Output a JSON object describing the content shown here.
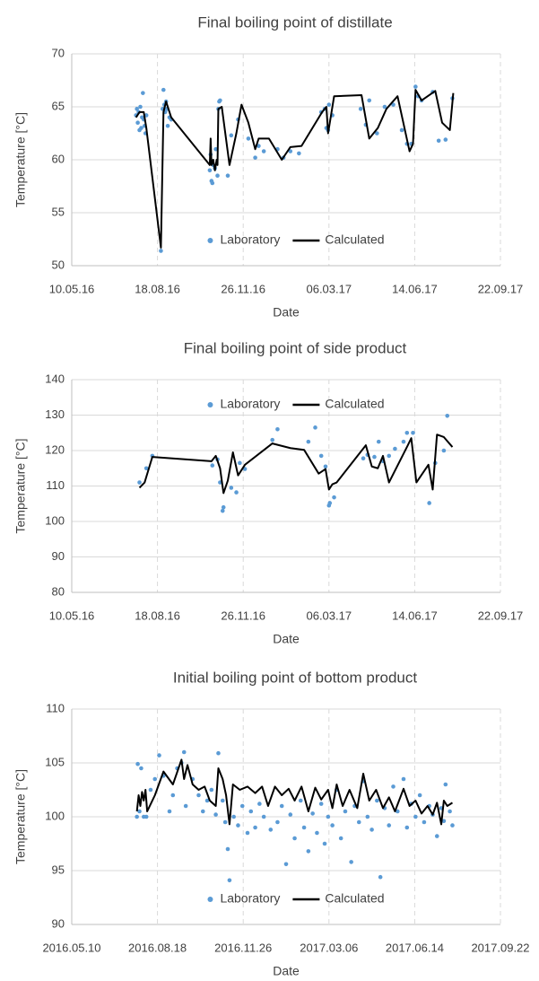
{
  "chart_data": [
    {
      "type": "combo",
      "title": "Final boiling point of distillate",
      "x_label": "Date",
      "y_label": "Temperature [°C]",
      "xlim": [
        "2016-05-10",
        "2017-09-22"
      ],
      "xticks": [
        {
          "value": "2016-05-10",
          "label": "10.05.16"
        },
        {
          "value": "2016-08-18",
          "label": "18.08.16"
        },
        {
          "value": "2016-11-26",
          "label": "26.11.16"
        },
        {
          "value": "2017-03-06",
          "label": "06.03.17"
        },
        {
          "value": "2017-06-14",
          "label": "14.06.17"
        },
        {
          "value": "2017-09-22",
          "label": "22.09.17"
        }
      ],
      "ylim": [
        50,
        70
      ],
      "yticks": [
        50,
        55,
        60,
        65,
        70
      ],
      "grid": true,
      "legend": "lower center",
      "series": [
        {
          "name": "Laboratory",
          "type": "scatter",
          "color": "#5b9bd5",
          "x": [
            "2016-07-24",
            "2016-07-25",
            "2016-07-26",
            "2016-07-27",
            "2016-07-28",
            "2016-07-29",
            "2016-07-30",
            "2016-07-31",
            "2016-08-01",
            "2016-08-02",
            "2016-08-03",
            "2016-08-04",
            "2016-08-05",
            "2016-08-22",
            "2016-08-24",
            "2016-08-25",
            "2016-08-26",
            "2016-08-27",
            "2016-08-28",
            "2016-08-29",
            "2016-08-30",
            "2016-09-01",
            "2016-09-03",
            "2016-10-18",
            "2016-10-19",
            "2016-10-20",
            "2016-10-21",
            "2016-10-22",
            "2016-10-24",
            "2016-10-25",
            "2016-10-27",
            "2016-10-28",
            "2016-10-29",
            "2016-10-30",
            "2016-11-08",
            "2016-11-12",
            "2016-11-20",
            "2016-12-02",
            "2016-12-10",
            "2016-12-14",
            "2016-12-20",
            "2017-01-05",
            "2017-01-12",
            "2017-01-20",
            "2017-01-30",
            "2017-02-25",
            "2017-03-01",
            "2017-03-03",
            "2017-03-05",
            "2017-03-06",
            "2017-03-10",
            "2017-04-12",
            "2017-04-18",
            "2017-04-22",
            "2017-05-01",
            "2017-05-10",
            "2017-05-20",
            "2017-05-30",
            "2017-06-05",
            "2017-06-10",
            "2017-06-15",
            "2017-06-18",
            "2017-06-22",
            "2017-07-05",
            "2017-07-12",
            "2017-07-20",
            "2017-07-28"
          ],
          "values": [
            64.2,
            64.8,
            63.5,
            64.5,
            62.8,
            65.0,
            63.0,
            64.0,
            66.3,
            63.8,
            63.2,
            62.5,
            64.2,
            51.4,
            64.8,
            66.6,
            65.2,
            64.5,
            65.5,
            64.8,
            63.2,
            64.0,
            63.8,
            59.0,
            60.5,
            58.0,
            57.8,
            59.5,
            59.2,
            61.0,
            58.5,
            64.8,
            65.5,
            65.6,
            58.5,
            62.3,
            63.8,
            62.0,
            60.2,
            61.3,
            60.8,
            61.0,
            60.2,
            60.8,
            60.6,
            64.5,
            64.8,
            63.0,
            62.8,
            65.2,
            64.2,
            64.8,
            63.3,
            65.6,
            62.5,
            65.0,
            65.2,
            62.8,
            61.5,
            61.5,
            66.9,
            66.0,
            65.6,
            66.4,
            61.8,
            61.9,
            65.8
          ]
        },
        {
          "name": "Calculated",
          "type": "line",
          "color": "#000000",
          "x": [
            "2016-07-24",
            "2016-07-28",
            "2016-08-02",
            "2016-08-05",
            "2016-08-22",
            "2016-08-25",
            "2016-08-28",
            "2016-09-03",
            "2016-10-18",
            "2016-10-19",
            "2016-10-20",
            "2016-10-22",
            "2016-10-24",
            "2016-10-26",
            "2016-10-27",
            "2016-10-28",
            "2016-11-01",
            "2016-11-10",
            "2016-11-18",
            "2016-11-24",
            "2016-12-02",
            "2016-12-10",
            "2016-12-14",
            "2016-12-26",
            "2017-01-10",
            "2017-01-20",
            "2017-02-02",
            "2017-02-26",
            "2017-03-03",
            "2017-03-05",
            "2017-03-12",
            "2017-04-13",
            "2017-04-22",
            "2017-05-02",
            "2017-05-12",
            "2017-05-25",
            "2017-06-08",
            "2017-06-12",
            "2017-06-15",
            "2017-06-22",
            "2017-07-08",
            "2017-07-16",
            "2017-07-25",
            "2017-07-29"
          ],
          "values": [
            64.0,
            64.5,
            64.5,
            63.0,
            51.7,
            64.5,
            65.5,
            64.0,
            59.5,
            62.0,
            59.5,
            60.0,
            59.0,
            60.0,
            59.5,
            64.8,
            65.0,
            59.5,
            62.5,
            65.2,
            63.5,
            61.0,
            62.0,
            62.0,
            60.0,
            61.2,
            61.3,
            64.5,
            65.0,
            62.5,
            66.0,
            66.1,
            62.0,
            63.0,
            64.8,
            66.0,
            60.8,
            61.5,
            66.6,
            65.6,
            66.5,
            63.5,
            62.8,
            66.3
          ]
        }
      ]
    },
    {
      "type": "combo",
      "title": "Final boiling point of side product",
      "x_label": "Date",
      "y_label": "Temperature [°C]",
      "xlim": [
        "2016-05-10",
        "2017-09-22"
      ],
      "xticks": [
        {
          "value": "2016-05-10",
          "label": "10.05.16"
        },
        {
          "value": "2016-08-18",
          "label": "18.08.16"
        },
        {
          "value": "2016-11-26",
          "label": "26.11.16"
        },
        {
          "value": "2017-03-06",
          "label": "06.03.17"
        },
        {
          "value": "2017-06-14",
          "label": "14.06.17"
        },
        {
          "value": "2017-09-22",
          "label": "22.09.17"
        }
      ],
      "ylim": [
        80,
        140
      ],
      "yticks": [
        80,
        90,
        100,
        110,
        120,
        130,
        140
      ],
      "grid": true,
      "legend": "upper center",
      "series": [
        {
          "name": "Laboratory",
          "type": "scatter",
          "color": "#5b9bd5",
          "x": [
            "2016-07-28",
            "2016-08-05",
            "2016-08-12",
            "2016-10-21",
            "2016-10-27",
            "2016-10-30",
            "2016-11-02",
            "2016-11-03",
            "2016-11-12",
            "2016-11-18",
            "2016-11-22",
            "2016-11-28",
            "2016-12-30",
            "2017-01-05",
            "2017-02-10",
            "2017-02-18",
            "2017-02-25",
            "2017-03-02",
            "2017-03-06",
            "2017-03-07",
            "2017-03-12",
            "2017-04-15",
            "2017-04-20",
            "2017-04-28",
            "2017-05-03",
            "2017-05-08",
            "2017-05-15",
            "2017-05-22",
            "2017-06-01",
            "2017-06-05",
            "2017-06-12",
            "2017-07-01",
            "2017-07-08",
            "2017-07-18",
            "2017-07-22"
          ],
          "values": [
            111,
            115,
            118.5,
            115.8,
            117.5,
            111,
            103,
            104,
            109.5,
            108.2,
            116.5,
            114.8,
            123,
            126,
            122.5,
            126.5,
            118.5,
            115.5,
            104.5,
            105.2,
            106.8,
            117.8,
            118.8,
            118.2,
            122.5,
            117,
            118.5,
            120.5,
            122.5,
            125,
            125,
            105.2,
            116.5,
            120,
            129.8
          ]
        },
        {
          "name": "Calculated",
          "type": "line",
          "color": "#000000",
          "x": [
            "2016-07-28",
            "2016-08-03",
            "2016-08-12",
            "2016-10-20",
            "2016-10-25",
            "2016-10-30",
            "2016-11-03",
            "2016-11-08",
            "2016-11-14",
            "2016-11-20",
            "2016-11-28",
            "2016-12-30",
            "2017-01-20",
            "2017-02-05",
            "2017-02-22",
            "2017-03-02",
            "2017-03-06",
            "2017-03-10",
            "2017-03-15",
            "2017-04-18",
            "2017-04-25",
            "2017-05-02",
            "2017-05-08",
            "2017-05-15",
            "2017-06-06",
            "2017-06-10",
            "2017-06-16",
            "2017-06-30",
            "2017-07-05",
            "2017-07-10",
            "2017-07-18",
            "2017-07-28"
          ],
          "values": [
            109.5,
            111,
            118.2,
            117,
            118.5,
            115,
            108,
            111.5,
            119.5,
            113,
            116,
            122,
            120.7,
            120.2,
            113.5,
            114.8,
            109,
            110.5,
            111,
            121.5,
            115.5,
            115,
            118.5,
            111,
            121.5,
            123.5,
            111,
            116,
            109,
            124.5,
            123.8,
            121
          ]
        }
      ]
    },
    {
      "type": "combo",
      "title": "Initial boiling point of bottom product",
      "x_label": "Date",
      "y_label": "Temperature [°C]",
      "xlim": [
        "2016-05-10",
        "2017-09-22"
      ],
      "xticks": [
        {
          "value": "2016-05-10",
          "label": "2016.05.10"
        },
        {
          "value": "2016-08-18",
          "label": "2016.08.18"
        },
        {
          "value": "2016-11-26",
          "label": "2016.11.26"
        },
        {
          "value": "2017-03-06",
          "label": "2017.03.06"
        },
        {
          "value": "2017-06-14",
          "label": "2017.06.14"
        },
        {
          "value": "2017-09-22",
          "label": "2017.09.22"
        }
      ],
      "ylim": [
        90,
        110
      ],
      "yticks": [
        90,
        95,
        100,
        105,
        110
      ],
      "grid": true,
      "legend": "lower center",
      "series": [
        {
          "name": "Laboratory",
          "type": "scatter",
          "color": "#5b9bd5",
          "x": [
            "2016-07-25",
            "2016-07-26",
            "2016-07-28",
            "2016-07-30",
            "2016-08-02",
            "2016-08-05",
            "2016-08-10",
            "2016-08-15",
            "2016-08-20",
            "2016-08-25",
            "2016-09-01",
            "2016-09-05",
            "2016-09-10",
            "2016-09-15",
            "2016-09-18",
            "2016-09-20",
            "2016-09-28",
            "2016-10-05",
            "2016-10-10",
            "2016-10-15",
            "2016-10-20",
            "2016-10-25",
            "2016-10-28",
            "2016-11-02",
            "2016-11-05",
            "2016-11-08",
            "2016-11-10",
            "2016-11-15",
            "2016-11-20",
            "2016-11-25",
            "2016-12-01",
            "2016-12-05",
            "2016-12-10",
            "2016-12-15",
            "2016-12-20",
            "2016-12-28",
            "2017-01-05",
            "2017-01-10",
            "2017-01-15",
            "2017-01-20",
            "2017-01-25",
            "2017-02-01",
            "2017-02-05",
            "2017-02-10",
            "2017-02-15",
            "2017-02-20",
            "2017-02-25",
            "2017-03-01",
            "2017-03-05",
            "2017-03-10",
            "2017-03-15",
            "2017-03-20",
            "2017-03-25",
            "2017-04-01",
            "2017-04-05",
            "2017-04-10",
            "2017-04-15",
            "2017-04-20",
            "2017-04-25",
            "2017-05-01",
            "2017-05-05",
            "2017-05-10",
            "2017-05-15",
            "2017-05-20",
            "2017-05-25",
            "2017-06-01",
            "2017-06-05",
            "2017-06-10",
            "2017-06-15",
            "2017-06-20",
            "2017-06-25",
            "2017-07-01",
            "2017-07-05",
            "2017-07-10",
            "2017-07-15",
            "2017-07-18",
            "2017-07-20",
            "2017-07-25",
            "2017-07-28"
          ],
          "values": [
            100,
            104.9,
            100.5,
            104.5,
            100,
            100,
            102.5,
            103.5,
            105.7,
            103.8,
            100.5,
            102,
            104.5,
            105,
            106,
            101,
            103.5,
            102,
            100.5,
            101.5,
            102.5,
            100.2,
            105.9,
            101.5,
            99.5,
            97,
            94.1,
            100,
            99.2,
            101,
            98.5,
            100.5,
            99,
            101.2,
            100,
            98.8,
            99.5,
            101,
            95.6,
            100.2,
            98,
            101.5,
            99,
            96.8,
            100.3,
            98.5,
            101.2,
            97.5,
            100,
            99.2,
            102.5,
            98,
            100.5,
            95.8,
            101,
            99.5,
            103.3,
            100,
            98.8,
            101.5,
            94.4,
            100.8,
            99.2,
            102.8,
            100.5,
            103.5,
            99,
            101.2,
            100,
            102,
            99.5,
            101,
            100.2,
            98.2,
            100.8,
            99.6,
            103,
            100.5,
            99.2
          ]
        },
        {
          "name": "Calculated",
          "type": "line",
          "color": "#000000",
          "x": [
            "2016-07-25",
            "2016-07-27",
            "2016-07-29",
            "2016-07-31",
            "2016-08-02",
            "2016-08-04",
            "2016-08-06",
            "2016-08-15",
            "2016-08-25",
            "2016-09-05",
            "2016-09-15",
            "2016-09-18",
            "2016-09-22",
            "2016-09-28",
            "2016-10-05",
            "2016-10-12",
            "2016-10-18",
            "2016-10-25",
            "2016-10-28",
            "2016-11-02",
            "2016-11-06",
            "2016-11-10",
            "2016-11-14",
            "2016-11-22",
            "2016-12-01",
            "2016-12-10",
            "2016-12-18",
            "2016-12-25",
            "2017-01-02",
            "2017-01-10",
            "2017-01-18",
            "2017-01-25",
            "2017-02-02",
            "2017-02-10",
            "2017-02-18",
            "2017-02-25",
            "2017-03-05",
            "2017-03-10",
            "2017-03-15",
            "2017-03-22",
            "2017-03-30",
            "2017-04-08",
            "2017-04-15",
            "2017-04-22",
            "2017-04-30",
            "2017-05-08",
            "2017-05-15",
            "2017-05-22",
            "2017-06-01",
            "2017-06-08",
            "2017-06-15",
            "2017-06-22",
            "2017-06-29",
            "2017-07-05",
            "2017-07-10",
            "2017-07-15",
            "2017-07-18",
            "2017-07-22",
            "2017-07-28"
          ],
          "values": [
            100.5,
            102,
            101,
            102.3,
            101.5,
            102.5,
            100.5,
            102,
            104.2,
            103,
            105.3,
            103.5,
            104.8,
            103,
            102.5,
            102.8,
            101.5,
            101,
            104.5,
            103.5,
            102,
            99.3,
            103,
            102.5,
            102.8,
            102.2,
            102.8,
            101,
            102.8,
            102,
            102.6,
            101.5,
            102.8,
            100.5,
            102.7,
            101.6,
            102.5,
            100.8,
            103,
            101,
            102.5,
            100.8,
            104,
            101.5,
            102.5,
            100.8,
            101.8,
            100.5,
            102.6,
            101,
            101.5,
            100.3,
            101,
            100.2,
            101.3,
            99.3,
            101.5,
            101,
            101.3
          ]
        }
      ]
    }
  ]
}
